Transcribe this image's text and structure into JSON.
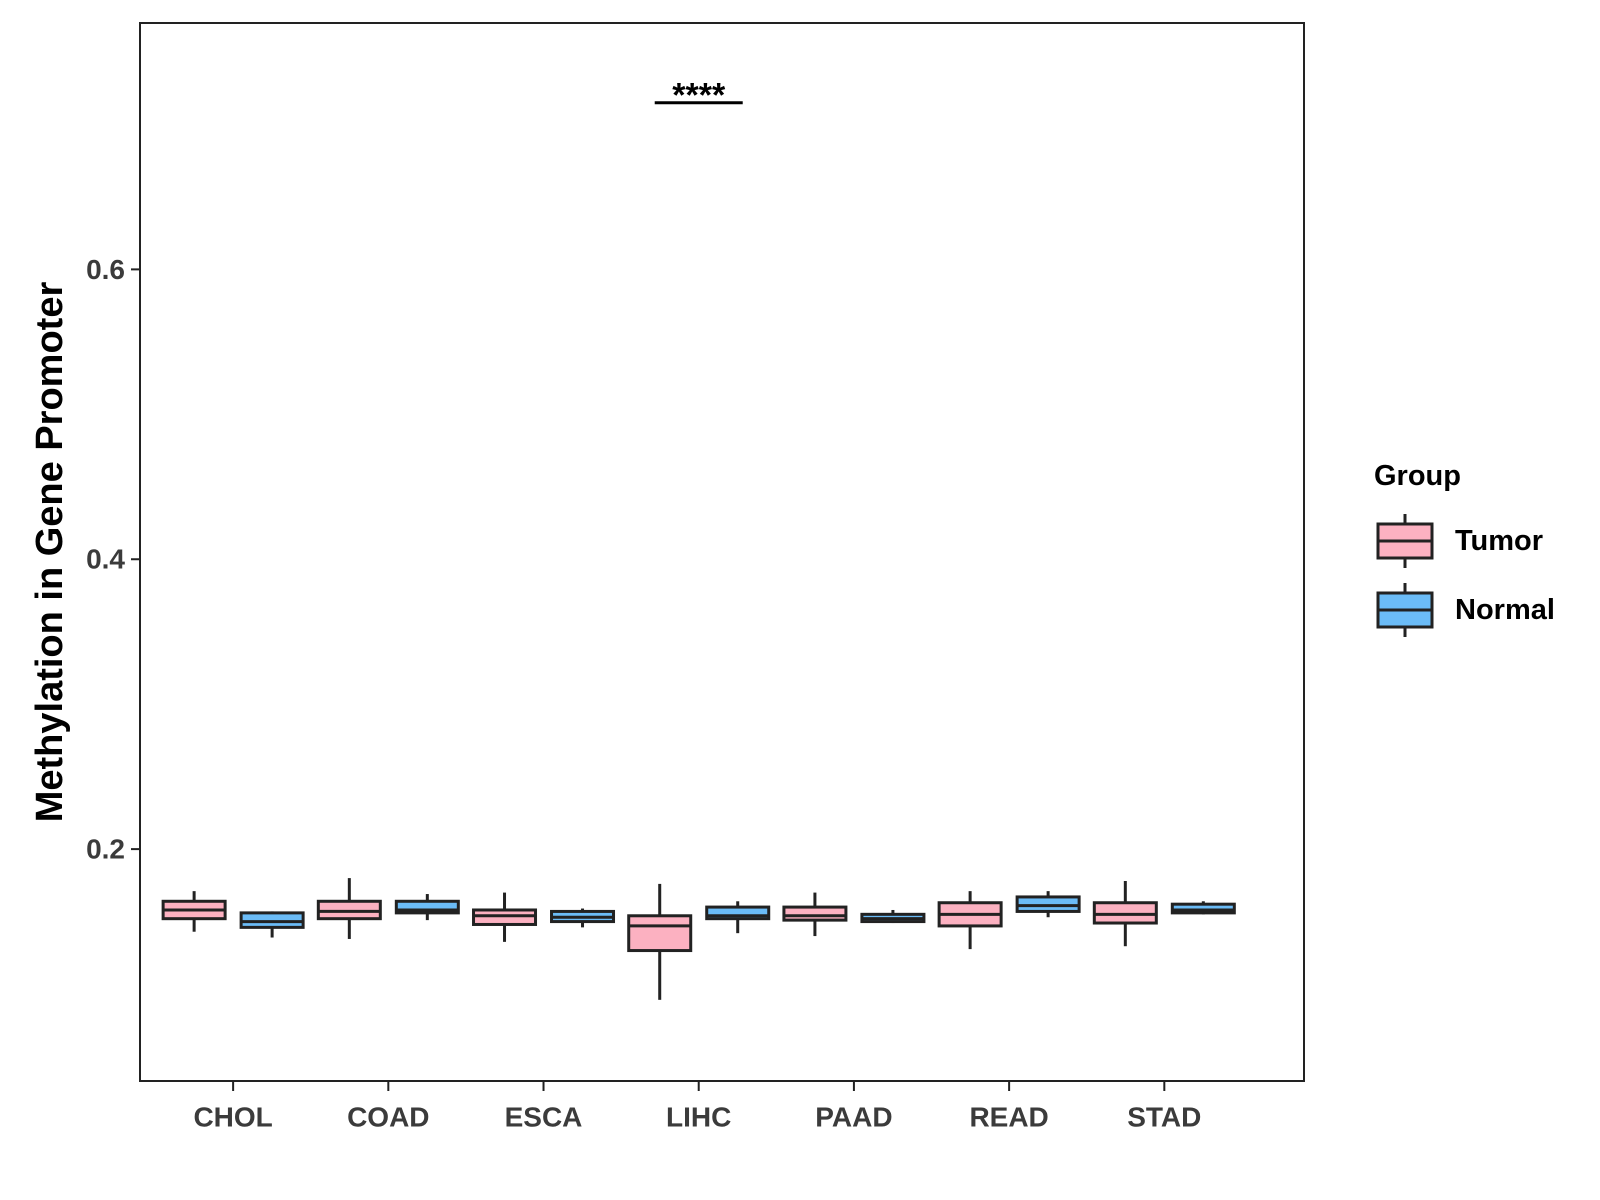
{
  "chart_data": {
    "type": "boxplot",
    "title": "",
    "xlabel": "",
    "ylabel": "Methylation in Gene Promoter",
    "ylim": [
      0.04,
      0.77
    ],
    "yticks": [
      0.2,
      0.4,
      0.6
    ],
    "ytick_labels": [
      "0.2",
      "0.4",
      "0.6"
    ],
    "grid": false,
    "legend": {
      "title": "Group",
      "position": "right",
      "entries": [
        {
          "name": "Tumor",
          "color": "#fcb1c1"
        },
        {
          "name": "Normal",
          "color": "#6bbcf7"
        }
      ]
    },
    "categories": [
      "CHOL",
      "COAD",
      "ESCA",
      "LIHC",
      "PAAD",
      "READ",
      "STAD"
    ],
    "series": [
      {
        "name": "Tumor",
        "color": "#fcb1c1",
        "boxes": [
          {
            "category": "CHOL",
            "whisker_low": 0.143,
            "q1": 0.152,
            "median": 0.158,
            "q3": 0.164,
            "whisker_high": 0.171
          },
          {
            "category": "COAD",
            "whisker_low": 0.138,
            "q1": 0.152,
            "median": 0.157,
            "q3": 0.164,
            "whisker_high": 0.18
          },
          {
            "category": "ESCA",
            "whisker_low": 0.136,
            "q1": 0.148,
            "median": 0.154,
            "q3": 0.158,
            "whisker_high": 0.17
          },
          {
            "category": "LIHC",
            "whisker_low": 0.096,
            "q1": 0.13,
            "median": 0.147,
            "q3": 0.154,
            "whisker_high": 0.176
          },
          {
            "category": "PAAD",
            "whisker_low": 0.14,
            "q1": 0.151,
            "median": 0.154,
            "q3": 0.16,
            "whisker_high": 0.17
          },
          {
            "category": "READ",
            "whisker_low": 0.131,
            "q1": 0.147,
            "median": 0.155,
            "q3": 0.163,
            "whisker_high": 0.171
          },
          {
            "category": "STAD",
            "whisker_low": 0.133,
            "q1": 0.149,
            "median": 0.155,
            "q3": 0.163,
            "whisker_high": 0.178
          }
        ]
      },
      {
        "name": "Normal",
        "color": "#6bbcf7",
        "boxes": [
          {
            "category": "CHOL",
            "whisker_low": 0.139,
            "q1": 0.146,
            "median": 0.15,
            "q3": 0.156,
            "whisker_high": 0.157
          },
          {
            "category": "COAD",
            "whisker_low": 0.151,
            "q1": 0.156,
            "median": 0.158,
            "q3": 0.164,
            "whisker_high": 0.169
          },
          {
            "category": "ESCA",
            "whisker_low": 0.146,
            "q1": 0.15,
            "median": 0.153,
            "q3": 0.157,
            "whisker_high": 0.159
          },
          {
            "category": "LIHC",
            "whisker_low": 0.142,
            "q1": 0.152,
            "median": 0.154,
            "q3": 0.16,
            "whisker_high": 0.164
          },
          {
            "category": "PAAD",
            "whisker_low": 0.149,
            "q1": 0.15,
            "median": 0.152,
            "q3": 0.155,
            "whisker_high": 0.158
          },
          {
            "category": "READ",
            "whisker_low": 0.153,
            "q1": 0.157,
            "median": 0.161,
            "q3": 0.167,
            "whisker_high": 0.171
          },
          {
            "category": "STAD",
            "whisker_low": 0.155,
            "q1": 0.156,
            "median": 0.158,
            "q3": 0.162,
            "whisker_high": 0.164
          }
        ]
      }
    ],
    "annotations": [
      {
        "category": "LIHC",
        "text": "****",
        "y": 0.715
      }
    ]
  }
}
